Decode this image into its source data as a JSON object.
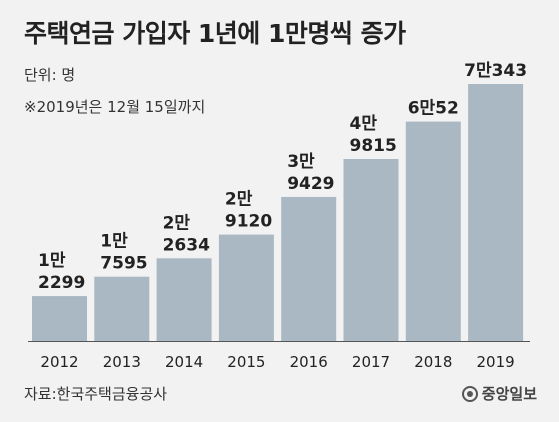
{
  "title": "주택연금 가입자 1년에 1만명씩 증가",
  "unit_label": "단위: 명",
  "note": "※2019년은 12월 15일까지",
  "source": "자료:한국주택금융공사",
  "publisher": "중앙일보",
  "colors": {
    "bar": "#a9b8c3",
    "text": "#222222",
    "background": "#f2f2f2",
    "axis": "#555555"
  },
  "chart_data": {
    "type": "bar",
    "categories": [
      "2012",
      "2013",
      "2014",
      "2015",
      "2016",
      "2017",
      "2018",
      "2019"
    ],
    "values": [
      12299,
      17595,
      22634,
      29120,
      39429,
      49815,
      60052,
      70343
    ],
    "value_labels": [
      [
        "1만",
        "2299"
      ],
      [
        "1만",
        "7595"
      ],
      [
        "2만",
        "2634"
      ],
      [
        "2만",
        "9120"
      ],
      [
        "3만",
        "9429"
      ],
      [
        "4만",
        "9815"
      ],
      [
        "6만52"
      ],
      [
        "7만343"
      ]
    ],
    "title": "주택연금 가입자 1년에 1만명씩 증가",
    "xlabel": "",
    "ylabel": "",
    "ylim": [
      0,
      70343
    ],
    "grid": false,
    "legend": "none"
  }
}
